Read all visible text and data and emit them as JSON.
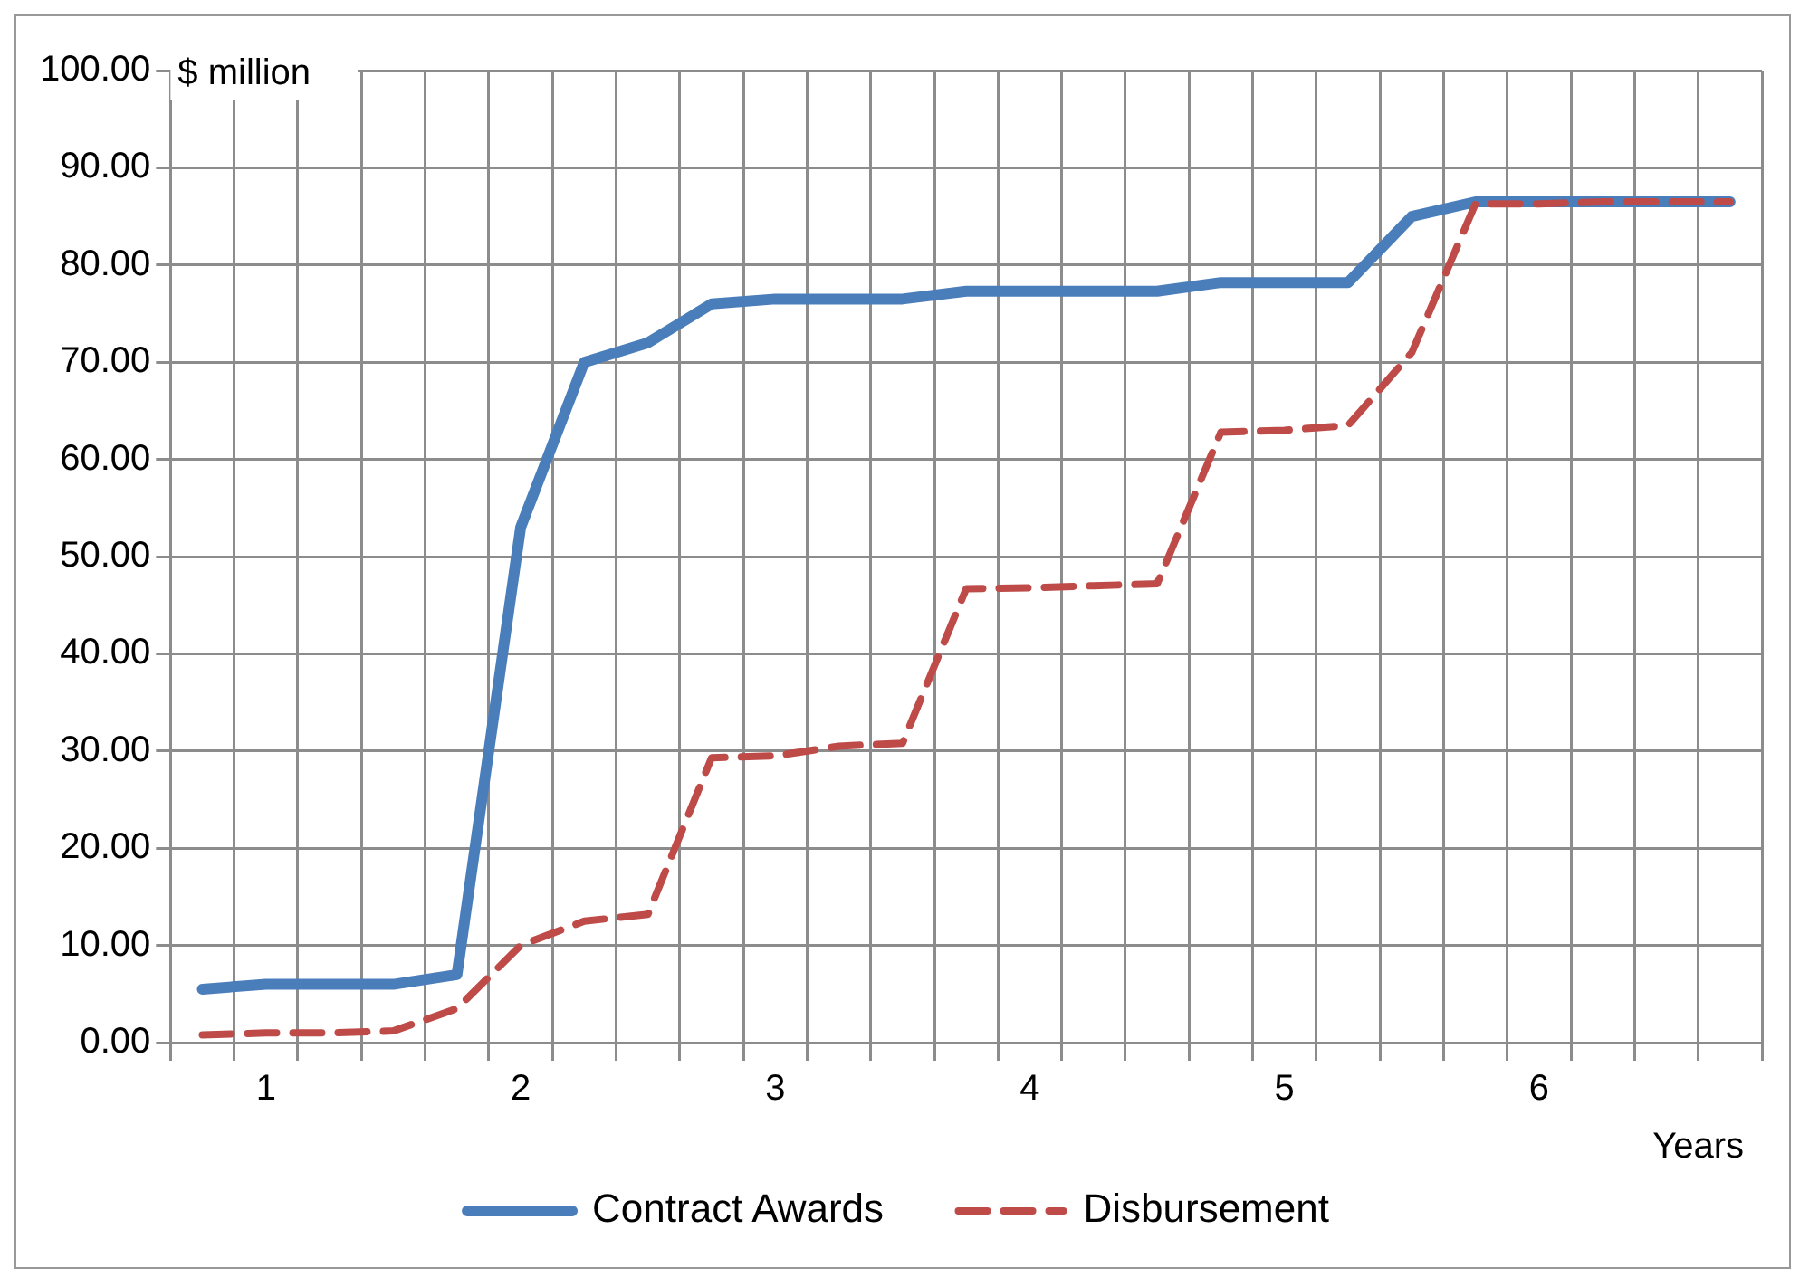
{
  "chart_data": {
    "type": "line",
    "ylabel": "$ million",
    "xlabel": "Years",
    "categories": [
      null,
      "1",
      null,
      null,
      null,
      "2",
      null,
      null,
      null,
      "3",
      null,
      null,
      null,
      "4",
      null,
      null,
      null,
      "5",
      null,
      null,
      null,
      "6",
      null,
      null,
      null
    ],
    "series": [
      {
        "name": "Contract Awards",
        "color": "#4a7ebb",
        "line_style": "solid",
        "values": [
          5.5,
          6,
          6,
          6,
          7,
          53,
          70,
          72,
          76,
          76.5,
          76.5,
          76.5,
          77.3,
          77.3,
          77.3,
          77.3,
          78.2,
          78.2,
          78.2,
          85,
          86.5,
          86.5,
          86.5,
          86.5,
          86.5
        ]
      },
      {
        "name": "Disbursement",
        "color": "#be4b48",
        "line_style": "dashed",
        "values": [
          0.8,
          1,
          1,
          1.2,
          3.5,
          10,
          12.5,
          13.2,
          29.3,
          29.5,
          30.5,
          30.8,
          46.7,
          46.8,
          47,
          47.2,
          62.8,
          63,
          63.5,
          71,
          86.3,
          86.3,
          86.5,
          86.5,
          86.5
        ]
      }
    ],
    "ylim": [
      0,
      100
    ],
    "yticks": [
      {
        "value": 0,
        "label": "0.00"
      },
      {
        "value": 10,
        "label": "10.00"
      },
      {
        "value": 20,
        "label": "20.00"
      },
      {
        "value": 30,
        "label": "30.00"
      },
      {
        "value": 40,
        "label": "40.00"
      },
      {
        "value": 50,
        "label": "50.00"
      },
      {
        "value": 60,
        "label": "60.00"
      },
      {
        "value": 70,
        "label": "70.00"
      },
      {
        "value": 80,
        "label": "80.00"
      },
      {
        "value": 90,
        "label": "90.00"
      },
      {
        "value": 100,
        "label": "100.00"
      }
    ],
    "grid": true,
    "legend": "bottom",
    "marker": "none"
  }
}
